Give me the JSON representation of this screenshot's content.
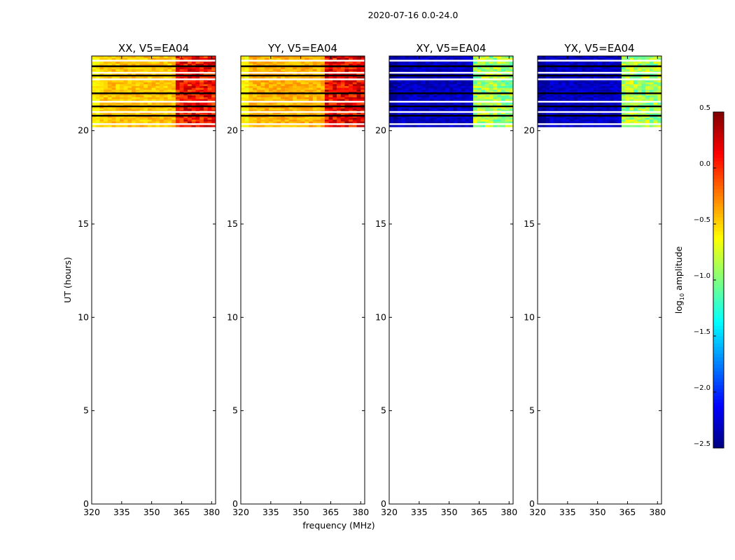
{
  "chart_data": {
    "type": "heatmap",
    "suptitle": "2020-07-16 0.0-24.0",
    "xlabel": "frequency (MHz)",
    "ylabel": "UT (hours)",
    "xlim": [
      320,
      382
    ],
    "ylim": [
      0,
      24
    ],
    "xticks": [
      320,
      335,
      350,
      365,
      380
    ],
    "yticks": [
      0,
      5,
      10,
      15,
      20
    ],
    "observed_ut_range": [
      20.2,
      24.0
    ],
    "colormap": "jet",
    "colorbar": {
      "label_main": "log",
      "label_sub": "10",
      "label_rest": " amplitude",
      "min": -2.5,
      "max": 0.5,
      "ticks": [
        -2.5,
        -2.0,
        -1.5,
        -1.0,
        -0.5,
        0.0,
        0.5
      ],
      "tick_labels": [
        "−2.5",
        "−2.0",
        "−1.5",
        "−1.0",
        "−0.5",
        "0.0",
        "0.5"
      ]
    },
    "panels": [
      {
        "title": "XX, V5=EA04",
        "base_level": -0.45,
        "band_level": 0.1,
        "edge_level": -0.6
      },
      {
        "title": "YY, V5=EA04",
        "base_level": -0.4,
        "band_level": 0.15,
        "edge_level": -0.6
      },
      {
        "title": "XY, V5=EA04",
        "base_level": -2.3,
        "band_level": -0.9,
        "edge_level": -2.4
      },
      {
        "title": "YX, V5=EA04",
        "base_level": -2.3,
        "band_level": -0.9,
        "edge_level": -2.4
      }
    ],
    "bright_band_mhz": [
      [
        363,
        367
      ],
      [
        368,
        372
      ],
      [
        373,
        377
      ],
      [
        378,
        381
      ]
    ],
    "flagged_ut": [
      20.35,
      20.8,
      21.0,
      21.3,
      21.55,
      22.0,
      22.75,
      22.95,
      23.1,
      23.45,
      23.75
    ]
  }
}
